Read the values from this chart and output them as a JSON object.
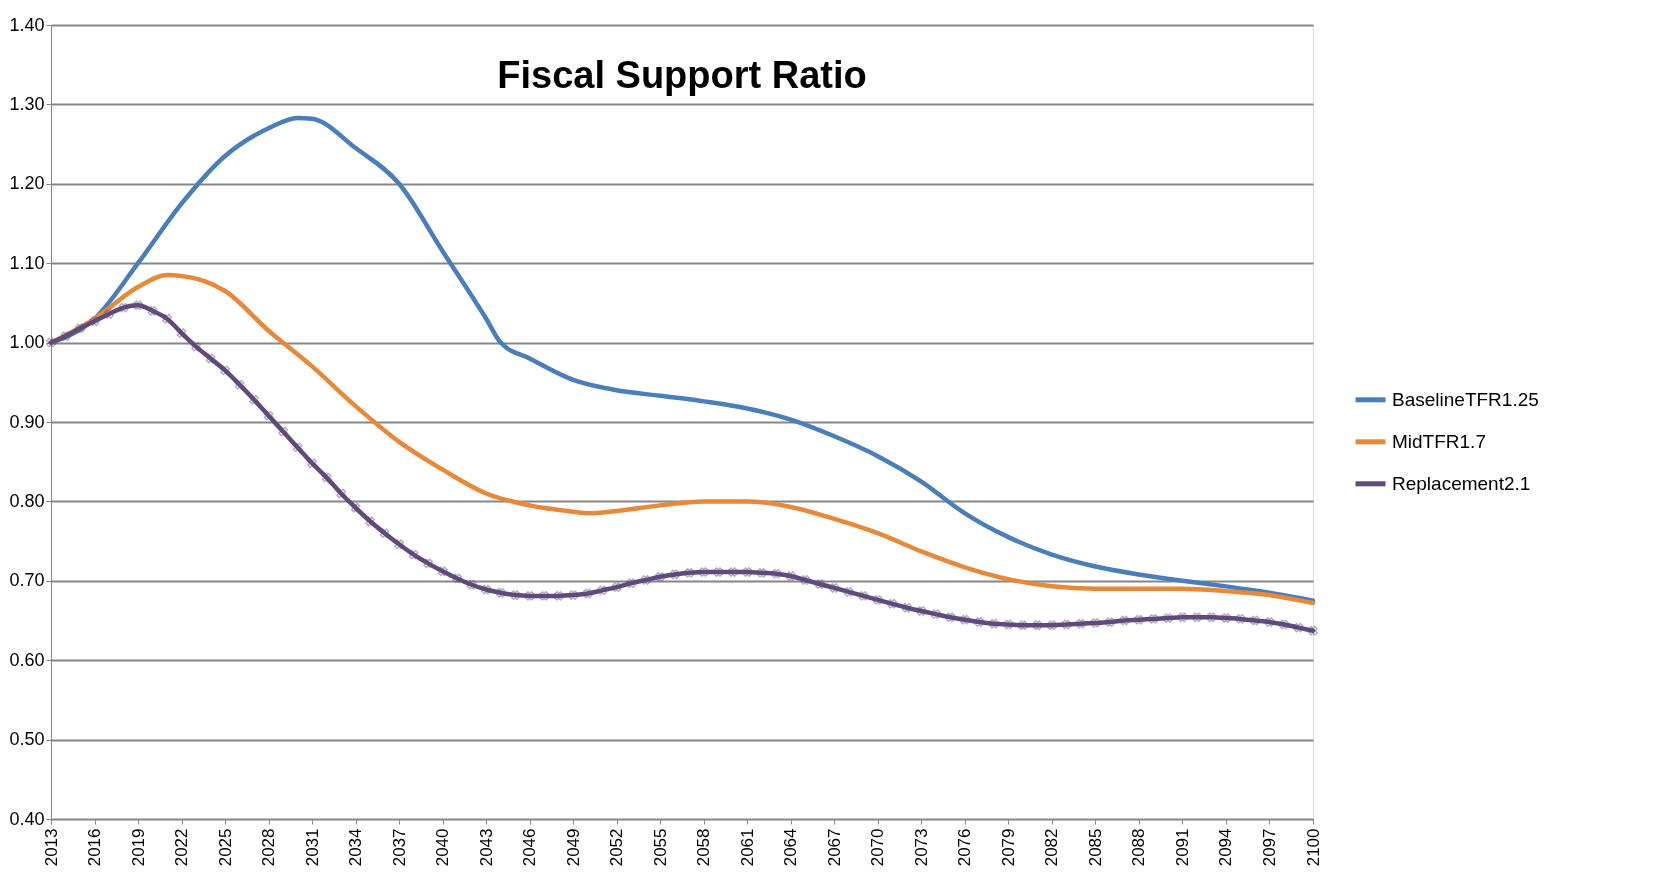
{
  "chart_data": {
    "type": "line",
    "title": "Fiscal Support Ratio",
    "xlim": [
      2013,
      2100
    ],
    "xticks": [
      2013,
      2016,
      2019,
      2022,
      2025,
      2028,
      2031,
      2034,
      2037,
      2040,
      2043,
      2046,
      2049,
      2052,
      2055,
      2058,
      2061,
      2064,
      2067,
      2070,
      2073,
      2076,
      2079,
      2082,
      2085,
      2088,
      2091,
      2094,
      2097,
      2100
    ],
    "ylim": [
      0.4,
      1.4
    ],
    "yticks": [
      {
        "value": 0.4,
        "label": "0.40"
      },
      {
        "value": 0.5,
        "label": "0.50"
      },
      {
        "value": 0.6,
        "label": "0.60"
      },
      {
        "value": 0.7,
        "label": "0.70"
      },
      {
        "value": 0.8,
        "label": "0.80"
      },
      {
        "value": 0.9,
        "label": "0.90"
      },
      {
        "value": 1.0,
        "label": "1.00"
      },
      {
        "value": 1.1,
        "label": "1.10"
      },
      {
        "value": 1.2,
        "label": "1.20"
      },
      {
        "value": 1.3,
        "label": "1.30"
      },
      {
        "value": 1.4,
        "label": "1.40"
      }
    ],
    "grid": "y",
    "legend": "right",
    "line_style": "solid",
    "series": [
      {
        "name": "BaselineTFR1.25",
        "color": "#4a7ebb",
        "marker": "none",
        "x": [
          2013,
          2016,
          2019,
          2022,
          2025,
          2028,
          2030,
          2031,
          2034,
          2037,
          2040,
          2043,
          2044,
          2046,
          2049,
          2052,
          2055,
          2058,
          2061,
          2064,
          2067,
          2070,
          2073,
          2076,
          2079,
          2082,
          2085,
          2088,
          2091,
          2094,
          2097,
          2100
        ],
        "values": [
          1.0,
          1.03,
          1.1,
          1.175,
          1.235,
          1.27,
          1.283,
          1.282,
          1.245,
          1.2,
          1.115,
          1.03,
          1.0,
          0.98,
          0.953,
          0.94,
          0.933,
          0.926,
          0.917,
          0.903,
          0.882,
          0.857,
          0.825,
          0.785,
          0.755,
          0.733,
          0.718,
          0.708,
          0.7,
          0.693,
          0.685,
          0.675
        ]
      },
      {
        "name": "MidTFR1.7",
        "color": "#e8893a",
        "marker": "none",
        "x": [
          2013,
          2016,
          2019,
          2021,
          2022,
          2025,
          2028,
          2031,
          2034,
          2037,
          2040,
          2043,
          2046,
          2049,
          2050,
          2052,
          2055,
          2058,
          2061,
          2064,
          2067,
          2070,
          2073,
          2076,
          2079,
          2082,
          2085,
          2088,
          2091,
          2094,
          2097,
          2100
        ],
        "values": [
          1.0,
          1.03,
          1.07,
          1.085,
          1.084,
          1.065,
          1.015,
          0.97,
          0.92,
          0.875,
          0.84,
          0.81,
          0.795,
          0.787,
          0.785,
          0.788,
          0.795,
          0.8,
          0.8,
          0.793,
          0.778,
          0.76,
          0.737,
          0.717,
          0.702,
          0.693,
          0.69,
          0.69,
          0.69,
          0.687,
          0.682,
          0.672
        ]
      },
      {
        "name": "Replacement2.1",
        "color": "#604a7b",
        "marker": "cross",
        "x": [
          2013,
          2014,
          2015,
          2016,
          2017,
          2018,
          2019,
          2020,
          2021,
          2022,
          2023,
          2024,
          2025,
          2026,
          2027,
          2028,
          2029,
          2030,
          2031,
          2032,
          2033,
          2034,
          2035,
          2036,
          2037,
          2038,
          2039,
          2040,
          2041,
          2042,
          2043,
          2044,
          2045,
          2046,
          2047,
          2048,
          2049,
          2050,
          2051,
          2052,
          2053,
          2054,
          2055,
          2056,
          2057,
          2058,
          2059,
          2060,
          2061,
          2062,
          2063,
          2064,
          2065,
          2066,
          2067,
          2068,
          2069,
          2070,
          2071,
          2072,
          2073,
          2074,
          2075,
          2076,
          2077,
          2078,
          2079,
          2080,
          2081,
          2082,
          2083,
          2084,
          2085,
          2086,
          2087,
          2088,
          2089,
          2090,
          2091,
          2092,
          2093,
          2094,
          2095,
          2096,
          2097,
          2098,
          2099,
          2100
        ],
        "values": [
          1.0,
          1.008,
          1.018,
          1.027,
          1.036,
          1.044,
          1.047,
          1.04,
          1.03,
          1.012,
          0.995,
          0.98,
          0.965,
          0.947,
          0.928,
          0.908,
          0.888,
          0.868,
          0.848,
          0.83,
          0.81,
          0.792,
          0.775,
          0.76,
          0.746,
          0.733,
          0.722,
          0.712,
          0.703,
          0.695,
          0.689,
          0.685,
          0.682,
          0.681,
          0.681,
          0.681,
          0.682,
          0.684,
          0.688,
          0.692,
          0.697,
          0.701,
          0.705,
          0.708,
          0.71,
          0.711,
          0.711,
          0.711,
          0.711,
          0.71,
          0.709,
          0.706,
          0.701,
          0.696,
          0.691,
          0.686,
          0.681,
          0.676,
          0.671,
          0.666,
          0.662,
          0.658,
          0.654,
          0.651,
          0.648,
          0.646,
          0.645,
          0.644,
          0.644,
          0.644,
          0.645,
          0.646,
          0.647,
          0.648,
          0.65,
          0.651,
          0.652,
          0.653,
          0.654,
          0.654,
          0.654,
          0.653,
          0.652,
          0.65,
          0.648,
          0.645,
          0.641,
          0.637
        ]
      }
    ]
  }
}
